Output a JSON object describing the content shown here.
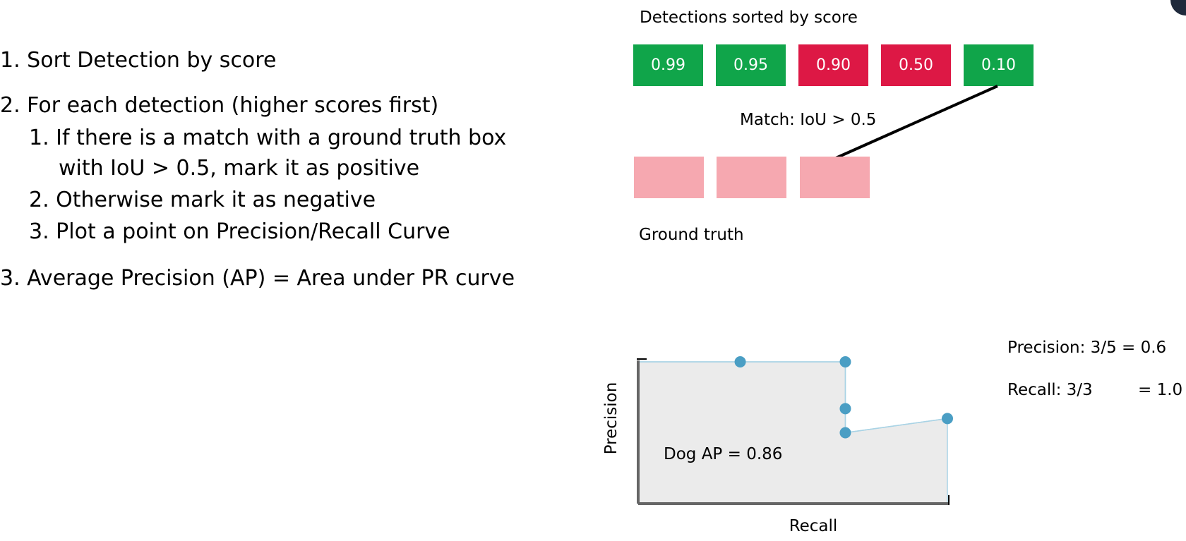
{
  "steps": {
    "s1": {
      "num": "1.",
      "text": "Sort Detection by score"
    },
    "s2": {
      "num": "2.",
      "text": "For each detection (higher scores first)"
    },
    "s2_1": {
      "num": "1.",
      "text": "If there is a match with a ground truth box",
      "cont": "with IoU > 0.5, mark it as positive"
    },
    "s2_2": {
      "num": "2.",
      "text": "Otherwise mark it as negative"
    },
    "s2_3": {
      "num": "3.",
      "text": "Plot a point on Precision/Recall Curve"
    },
    "s3": {
      "num": "3.",
      "text": "Average Precision (AP) = Area under PR curve"
    }
  },
  "detections": {
    "caption": "Detections sorted by score",
    "items": [
      {
        "score": "0.99",
        "match": true
      },
      {
        "score": "0.95",
        "match": true
      },
      {
        "score": "0.90",
        "match": false
      },
      {
        "score": "0.50",
        "match": false
      },
      {
        "score": "0.10",
        "match": true
      }
    ],
    "match_label": "Match: IoU > 0.5",
    "colors": {
      "positive": "#10a54a",
      "negative": "#dd1845",
      "ground_truth": "#f6a8b0"
    }
  },
  "ground_truth": {
    "caption": "Ground truth",
    "count": 3
  },
  "metrics": {
    "precision": "Precision: 3/5 = 0.6",
    "recall_label": "Recall: 3/3",
    "recall_value": "= 1.0"
  },
  "chart_data": {
    "type": "area",
    "xlabel": "Recall",
    "ylabel": "Precision",
    "annotation": "Dog AP = 0.86",
    "xlim": [
      0,
      1
    ],
    "ylim": [
      0,
      1
    ],
    "points": [
      {
        "x": 0.33,
        "y": 1.0
      },
      {
        "x": 0.67,
        "y": 1.0
      },
      {
        "x": 0.67,
        "y": 0.67
      },
      {
        "x": 0.67,
        "y": 0.5
      },
      {
        "x": 1.0,
        "y": 0.6
      }
    ],
    "colors": {
      "point": "#4a9ec4",
      "line": "#a9d3e5",
      "fill": "#ebebeb",
      "axis": "#666666"
    }
  }
}
